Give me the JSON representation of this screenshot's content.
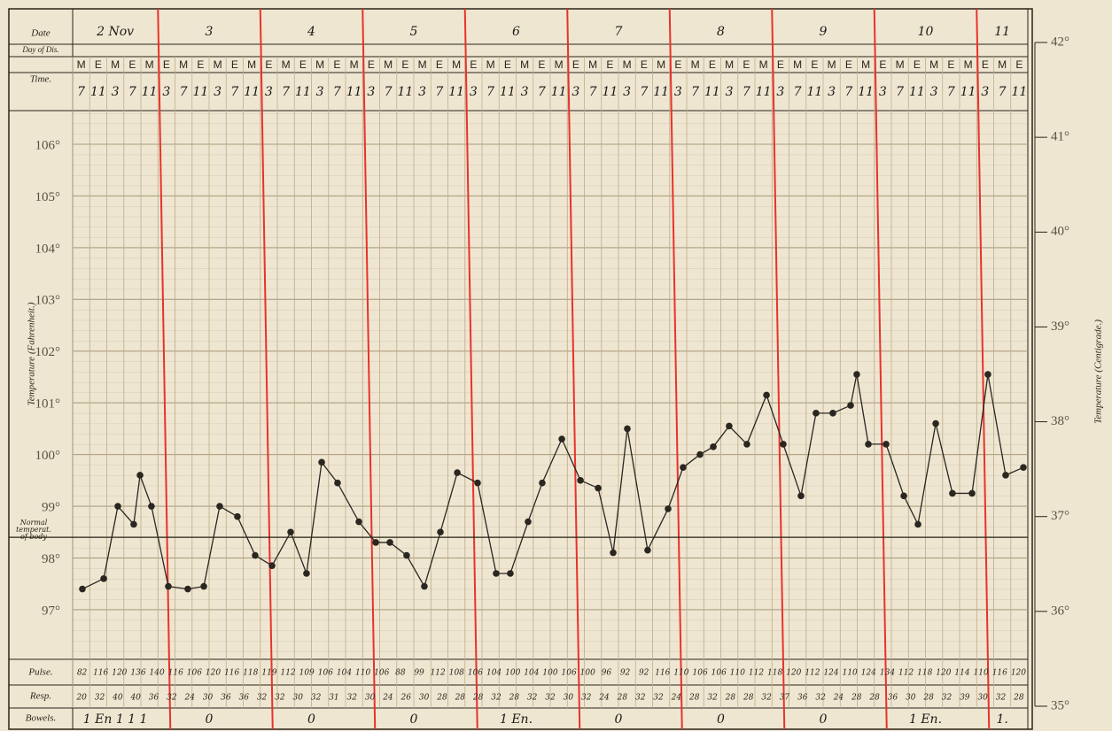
{
  "chart_data": {
    "type": "line",
    "y_label": "Temperature (Fahrenheit.)",
    "y2_label": "Temperature (Centigrade.)",
    "row_labels": {
      "date": "Date",
      "day": "Day of Dis.",
      "time": "Time.",
      "pulse": "Pulse.",
      "resp": "Resp.",
      "bowels": "Bowels."
    },
    "day_labels": [
      "2 Nov",
      "3",
      "4",
      "5",
      "6",
      "7",
      "8",
      "9",
      "10",
      "11"
    ],
    "me_row": [
      "M",
      "E",
      "M",
      "E",
      "M",
      "E",
      "M",
      "E",
      "M",
      "E",
      "M",
      "E",
      "M",
      "E",
      "M",
      "E",
      "M",
      "E",
      "M",
      "E",
      "M",
      "E",
      "M",
      "E",
      "M",
      "E",
      "M",
      "E",
      "M",
      "E",
      "M",
      "E",
      "M",
      "E",
      "M",
      "E",
      "M",
      "E",
      "M",
      "E",
      "M",
      "E",
      "M",
      "E",
      "M",
      "E",
      "M",
      "E",
      "M",
      "E",
      "M",
      "E",
      "M",
      "E",
      "M",
      "E"
    ],
    "times": [
      "7",
      "11",
      "3",
      "7",
      "11",
      "3",
      "7",
      "11",
      "3",
      "7",
      "11",
      "3",
      "7",
      "11",
      "3",
      "7",
      "11",
      "3",
      "7",
      "11",
      "3",
      "7",
      "11",
      "3",
      "7",
      "11",
      "3",
      "7",
      "11",
      "3",
      "7",
      "11",
      "3",
      "7",
      "11",
      "3",
      "7",
      "11",
      "3",
      "7",
      "11",
      "3",
      "7",
      "11",
      "3",
      "7",
      "11",
      "3",
      "7",
      "11",
      "3",
      "7",
      "11",
      "3",
      "7",
      "11"
    ],
    "xlim": [
      0,
      56
    ],
    "ylim": [
      96.04,
      106.65
    ],
    "yticks": [
      {
        "value": 97,
        "label": "97°"
      },
      {
        "value": 98,
        "label": "98°"
      },
      {
        "value": 99,
        "label": "99°"
      },
      {
        "value": 100,
        "label": "100°"
      },
      {
        "value": 101,
        "label": "101°"
      },
      {
        "value": 102,
        "label": "102°"
      },
      {
        "value": 103,
        "label": "103°"
      },
      {
        "value": 104,
        "label": "104°"
      },
      {
        "value": 105,
        "label": "105°"
      },
      {
        "value": 106,
        "label": "106°"
      }
    ],
    "y2lim": [
      35,
      42
    ],
    "y2ticks": [
      {
        "value": 35,
        "label": "35°"
      },
      {
        "value": 36,
        "label": "36°"
      },
      {
        "value": 37,
        "label": "37°"
      },
      {
        "value": 38,
        "label": "38°"
      },
      {
        "value": 39,
        "label": "39°"
      },
      {
        "value": 40,
        "label": "40°"
      },
      {
        "value": 41,
        "label": "41°"
      },
      {
        "value": 42,
        "label": "42°"
      }
    ],
    "reference_line": {
      "value": 98.4,
      "label": [
        "Normal",
        "temperat.",
        "of body"
      ]
    },
    "grid": true,
    "series": [
      {
        "color": "#2a2620",
        "x": [
          0.57,
          1.82,
          2.65,
          3.58,
          3.95,
          4.62,
          5.61,
          6.75,
          7.69,
          8.62,
          9.66,
          10.7,
          11.69,
          12.78,
          13.71,
          14.6,
          15.53,
          16.78,
          17.77,
          18.6,
          19.58,
          20.62,
          21.56,
          22.55,
          23.74,
          24.83,
          25.66,
          26.7,
          27.53,
          28.68,
          29.77,
          30.81,
          31.69,
          32.52,
          33.71,
          34.91,
          35.79,
          36.78,
          37.56,
          38.49,
          39.53,
          40.68,
          41.66,
          42.7,
          43.58,
          44.57,
          45.61,
          45.97,
          46.65,
          47.69,
          48.73,
          49.56,
          50.6,
          51.58,
          52.73,
          53.66,
          54.7,
          55.74
        ],
        "values": [
          97.4,
          97.6,
          99.0,
          98.65,
          99.6,
          99.0,
          97.45,
          97.4,
          97.45,
          99.0,
          98.8,
          98.05,
          97.85,
          98.5,
          97.7,
          99.85,
          99.45,
          98.7,
          98.3,
          98.3,
          98.05,
          97.45,
          98.5,
          99.65,
          99.45,
          97.7,
          97.7,
          98.7,
          99.45,
          100.3,
          99.5,
          99.35,
          98.1,
          100.5,
          98.15,
          98.95,
          99.75,
          100.0,
          100.15,
          100.55,
          100.2,
          101.15,
          100.2,
          99.2,
          100.8,
          100.8,
          100.95,
          101.55,
          100.2,
          100.2,
          99.2,
          98.65,
          100.6,
          99.25,
          99.25,
          101.55,
          99.6,
          99.75
        ]
      }
    ],
    "pulse": [
      "82",
      "116",
      "120",
      "136",
      "140",
      "116",
      "106",
      "120",
      "116",
      "118",
      "119",
      "112",
      "109",
      "106",
      "104",
      "110",
      "106",
      "88",
      "99",
      "112",
      "108",
      "106",
      "104",
      "100",
      "104",
      "100",
      "106",
      "100",
      "96",
      "92",
      "92",
      "116",
      "110",
      "106",
      "106",
      "110",
      "112",
      "118",
      "120",
      "112",
      "124",
      "110",
      "124",
      "134",
      "112",
      "118",
      "120",
      "114",
      "110",
      "116",
      "120"
    ],
    "resp": [
      "20",
      "32",
      "40",
      "40",
      "36",
      "32",
      "24",
      "30",
      "36",
      "36",
      "32",
      "32",
      "30",
      "32",
      "31",
      "32",
      "30",
      "24",
      "26",
      "30",
      "28",
      "28",
      "28",
      "32",
      "28",
      "32",
      "32",
      "30",
      "32",
      "24",
      "28",
      "32",
      "32",
      "24",
      "28",
      "32",
      "28",
      "28",
      "32",
      "37",
      "36",
      "32",
      "24",
      "28",
      "28",
      "36",
      "30",
      "28",
      "32",
      "39",
      "30",
      "32",
      "28"
    ],
    "bowels": [
      "1 En 1 1 1",
      "0",
      "0",
      "0",
      "1 En.",
      "0",
      "0",
      "0",
      "1 En.",
      "1."
    ]
  }
}
